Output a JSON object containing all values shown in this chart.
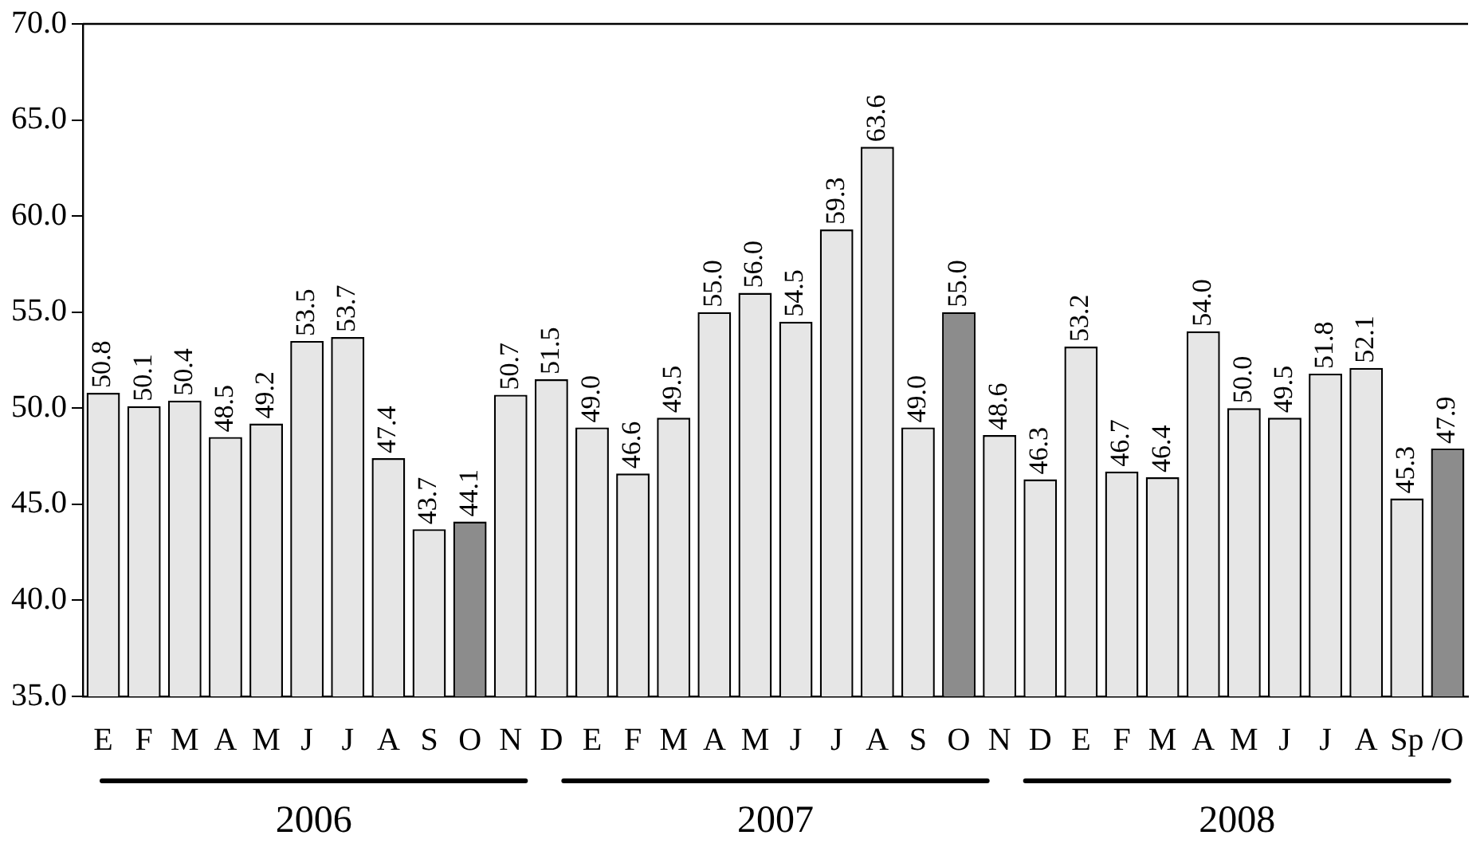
{
  "chart_data": {
    "type": "bar",
    "categories": [
      "E",
      "F",
      "M",
      "A",
      "M",
      "J",
      "J",
      "A",
      "S",
      "O",
      "N",
      "D",
      "E",
      "F",
      "M",
      "A",
      "M",
      "J",
      "J",
      "A",
      "S",
      "O",
      "N",
      "D",
      "E",
      "F",
      "M",
      "A",
      "M",
      "J",
      "J",
      "A",
      "Sp",
      "/O"
    ],
    "values": [
      50.8,
      50.1,
      50.4,
      48.5,
      49.2,
      53.5,
      53.7,
      47.4,
      43.7,
      44.1,
      50.7,
      51.5,
      49.0,
      46.6,
      49.5,
      55.0,
      56.0,
      54.5,
      59.3,
      63.6,
      49.0,
      55.0,
      48.6,
      46.3,
      53.2,
      46.7,
      46.4,
      54.0,
      50.0,
      49.5,
      51.8,
      52.1,
      45.3,
      47.9
    ],
    "colors": [
      "#e6e6e6",
      "#e6e6e6",
      "#e6e6e6",
      "#e6e6e6",
      "#e6e6e6",
      "#e6e6e6",
      "#e6e6e6",
      "#e6e6e6",
      "#e6e6e6",
      "#8c8c8c",
      "#e6e6e6",
      "#e6e6e6",
      "#e6e6e6",
      "#e6e6e6",
      "#e6e6e6",
      "#e6e6e6",
      "#e6e6e6",
      "#e6e6e6",
      "#e6e6e6",
      "#e6e6e6",
      "#e6e6e6",
      "#8c8c8c",
      "#e6e6e6",
      "#e6e6e6",
      "#e6e6e6",
      "#e6e6e6",
      "#e6e6e6",
      "#e6e6e6",
      "#e6e6e6",
      "#e6e6e6",
      "#e6e6e6",
      "#e6e6e6",
      "#e6e6e6",
      "#8c8c8c"
    ],
    "ylim": [
      35,
      70
    ],
    "yticks": [
      {
        "value": 35,
        "label": "35.0"
      },
      {
        "value": 40,
        "label": "40.0"
      },
      {
        "value": 45,
        "label": "45.0"
      },
      {
        "value": 50,
        "label": "50.0"
      },
      {
        "value": 55,
        "label": "55.0"
      },
      {
        "value": 60,
        "label": "60.0"
      },
      {
        "value": 65,
        "label": "65.0"
      },
      {
        "value": 70,
        "label": "70.0"
      }
    ],
    "value_labels": [
      "50.8",
      "50.1",
      "50.4",
      "48.5",
      "49.2",
      "53.5",
      "53.7",
      "47.4",
      "43.7",
      "44.1",
      "50.7",
      "51.5",
      "49.0",
      "46.6",
      "49.5",
      "55.0",
      "56.0",
      "54.5",
      "59.3",
      "63.6",
      "49.0",
      "55.0",
      "48.6",
      "46.3",
      "53.2",
      "46.7",
      "46.4",
      "54.0",
      "50.0",
      "49.5",
      "51.8",
      "52.1",
      "45.3",
      "47.9"
    ],
    "grid": false,
    "legend": false,
    "annotations": [
      "2006",
      "2007",
      "2008"
    ]
  }
}
